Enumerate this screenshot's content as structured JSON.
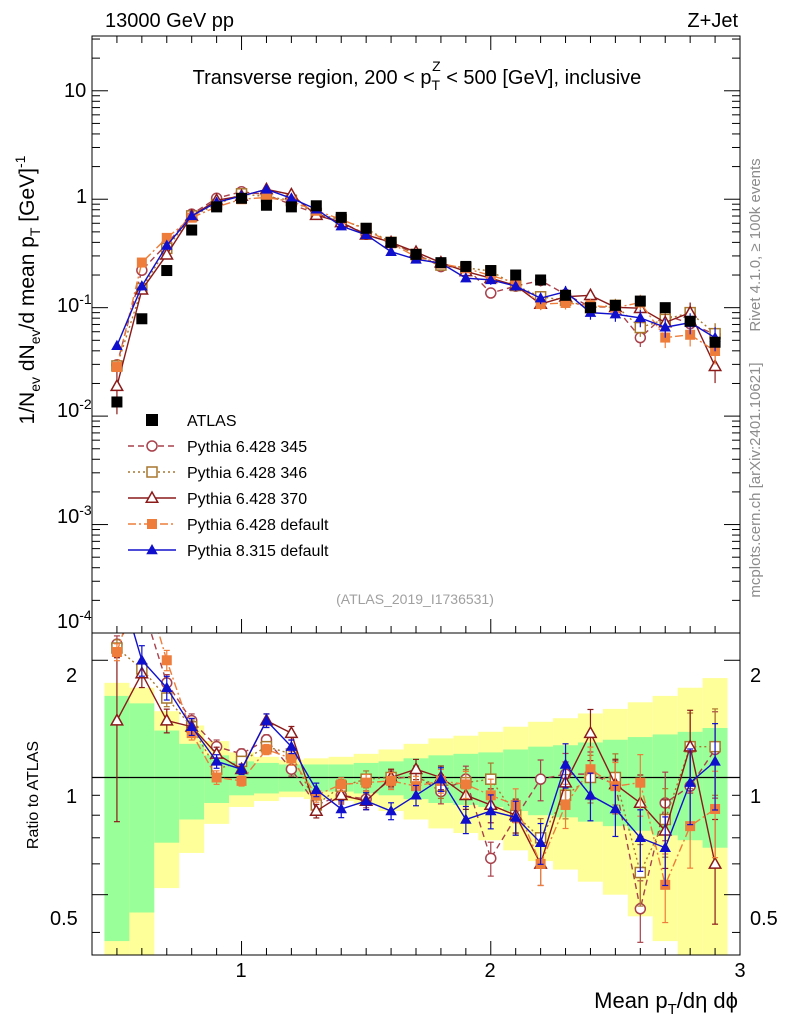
{
  "header": {
    "left": "13000 GeV pp",
    "right": "Z+Jet",
    "title": "Transverse region, 200 < p",
    "title_sub": "T",
    "title_sup": "Z",
    "title_tail": " < 500 [GeV], inclusive",
    "analysis_id": "(ATLAS_2019_I1736531)"
  },
  "side_labels": {
    "rivet": "Rivet 4.1.0, ≥ 100k events",
    "mcplots": "mcplots.cern.ch [arXiv:2401.10621]"
  },
  "axes": {
    "main_ylabel_parts": [
      "1/N",
      "ev",
      " dN",
      "ev",
      "/d mean p",
      "T",
      " [GeV]",
      "-1"
    ],
    "ratio_ylabel": "Ratio to ATLAS",
    "xlabel_parts": [
      "Mean p",
      "T",
      "/dη dϕ"
    ],
    "main_ytick_labels": [
      "10",
      "-4",
      "10",
      "-3",
      "10",
      "-2",
      "10",
      "-1",
      "1",
      "10"
    ],
    "ratio_ytick_labels": [
      "0.5",
      "1",
      "2"
    ],
    "xtick_labels": [
      "1",
      "2",
      "3"
    ]
  },
  "chart_data": {
    "type": "line",
    "x": [
      0.5,
      0.6,
      0.7,
      0.8,
      0.9,
      1.0,
      1.1,
      1.2,
      1.3,
      1.4,
      1.5,
      1.6,
      1.7,
      1.8,
      1.9,
      2.0,
      2.1,
      2.2,
      2.3,
      2.4,
      2.5,
      2.6,
      2.7,
      2.8,
      2.9
    ],
    "xlim": [
      0.4,
      3.0
    ],
    "ylim_main": [
      0.0001,
      32
    ],
    "ylim_ratio": [
      0.35,
      2.35
    ],
    "reference": {
      "name": "ATLAS",
      "values": [
        0.0135,
        0.079,
        0.22,
        0.52,
        0.85,
        1.02,
        0.88,
        0.85,
        0.87,
        0.68,
        0.54,
        0.4,
        0.31,
        0.26,
        0.24,
        0.22,
        0.2,
        0.18,
        0.13,
        0.1,
        0.105,
        0.115,
        0.1,
        0.075,
        0.048
      ],
      "stat_band": [
        0.62,
        0.55,
        0.32,
        0.22,
        0.14,
        0.1,
        0.09,
        0.08,
        0.08,
        0.08,
        0.09,
        0.1,
        0.12,
        0.14,
        0.15,
        0.16,
        0.18,
        0.2,
        0.21,
        0.23,
        0.25,
        0.27,
        0.29,
        0.31,
        0.34
      ],
      "total_band": [
        0.75,
        0.7,
        0.48,
        0.36,
        0.24,
        0.16,
        0.13,
        0.11,
        0.12,
        0.13,
        0.15,
        0.18,
        0.22,
        0.26,
        0.28,
        0.31,
        0.35,
        0.39,
        0.42,
        0.46,
        0.5,
        0.56,
        0.62,
        0.7,
        0.8
      ]
    },
    "series": [
      {
        "name": "Pythia 6.428 345",
        "color": "#a8414b",
        "marker": "open-circle",
        "line": "dashed",
        "ratio": [
          2.2,
          2.8,
          1.75,
          1.4,
          1.2,
          1.15,
          1.25,
          1.05,
          0.85,
          0.9,
          0.88,
          0.99,
          1.01,
          0.92,
          0.99,
          0.62,
          0.79,
          0.99,
          1.02,
          1.02,
          0.96,
          0.46,
          0.86,
          0.95,
          1.18
        ],
        "err": [
          0.05,
          0.05,
          0.05,
          0.04,
          0.04,
          0.03,
          0.03,
          0.04,
          0.04,
          0.04,
          0.05,
          0.05,
          0.06,
          0.07,
          0.08,
          0.1,
          0.1,
          0.12,
          0.13,
          0.14,
          0.15,
          0.18,
          0.2,
          0.22,
          0.25
        ]
      },
      {
        "name": "Pythia 6.428 346",
        "color": "#a8772e",
        "marker": "open-square",
        "line": "dotted",
        "ratio": [
          2.15,
          1.9,
          1.6,
          1.35,
          1.05,
          1.1,
          1.2,
          1.15,
          0.85,
          0.95,
          0.99,
          1.0,
          1.0,
          0.95,
          0.97,
          0.99,
          0.8,
          0.7,
          0.9,
          1.0,
          1.0,
          0.57,
          0.78,
          1.2,
          1.2
        ],
        "err": [
          0.05,
          0.05,
          0.05,
          0.04,
          0.04,
          0.03,
          0.03,
          0.04,
          0.04,
          0.04,
          0.05,
          0.05,
          0.06,
          0.07,
          0.08,
          0.1,
          0.1,
          0.12,
          0.13,
          0.14,
          0.15,
          0.18,
          0.2,
          0.22,
          0.25
        ]
      },
      {
        "name": "Pythia 6.428 370",
        "color": "#8b1a1a",
        "marker": "open-triangle",
        "line": "solid",
        "ratio": [
          1.4,
          1.85,
          1.4,
          1.35,
          1.15,
          1.05,
          1.4,
          1.3,
          0.82,
          0.9,
          0.87,
          1.0,
          1.05,
          1.0,
          0.9,
          0.85,
          0.8,
          0.6,
          0.97,
          1.3,
          0.96,
          0.86,
          0.73,
          1.2,
          0.6
        ],
        "err": [
          0.45,
          0.08,
          0.07,
          0.05,
          0.04,
          0.03,
          0.04,
          0.04,
          0.04,
          0.05,
          0.05,
          0.05,
          0.06,
          0.07,
          0.08,
          0.1,
          0.1,
          0.12,
          0.13,
          0.15,
          0.16,
          0.18,
          0.2,
          0.24,
          0.3
        ]
      },
      {
        "name": "Pythia 6.428 default",
        "color": "#ee7d3b",
        "marker": "filled-square",
        "line": "dashdot",
        "ratio": [
          2.1,
          3.3,
          2.0,
          1.3,
          1.0,
          0.98,
          1.18,
          1.12,
          0.9,
          0.96,
          0.97,
          0.98,
          0.95,
          0.98,
          0.96,
          0.9,
          0.85,
          0.6,
          0.85,
          1.05,
          0.95,
          0.97,
          0.53,
          0.75,
          0.83
        ],
        "err": [
          0.05,
          0.05,
          0.06,
          0.04,
          0.04,
          0.03,
          0.03,
          0.04,
          0.04,
          0.04,
          0.05,
          0.05,
          0.06,
          0.07,
          0.08,
          0.1,
          0.1,
          0.12,
          0.13,
          0.14,
          0.15,
          0.18,
          0.2,
          0.22,
          0.25
        ]
      },
      {
        "name": "Pythia 8.315 default",
        "color": "#1010cc",
        "marker": "filled-triangle",
        "line": "solid",
        "ratio": [
          3.3,
          2.0,
          1.7,
          1.35,
          1.1,
          1.05,
          1.4,
          1.2,
          0.93,
          0.83,
          0.87,
          0.82,
          0.9,
          0.99,
          0.78,
          0.82,
          0.79,
          0.68,
          1.08,
          0.9,
          0.83,
          0.7,
          0.66,
          0.97,
          1.1
        ],
        "err": [
          0.08,
          0.09,
          0.07,
          0.05,
          0.04,
          0.03,
          0.04,
          0.04,
          0.04,
          0.05,
          0.05,
          0.05,
          0.06,
          0.07,
          0.08,
          0.1,
          0.1,
          0.12,
          0.13,
          0.14,
          0.15,
          0.18,
          0.2,
          0.22,
          0.25
        ]
      }
    ]
  }
}
